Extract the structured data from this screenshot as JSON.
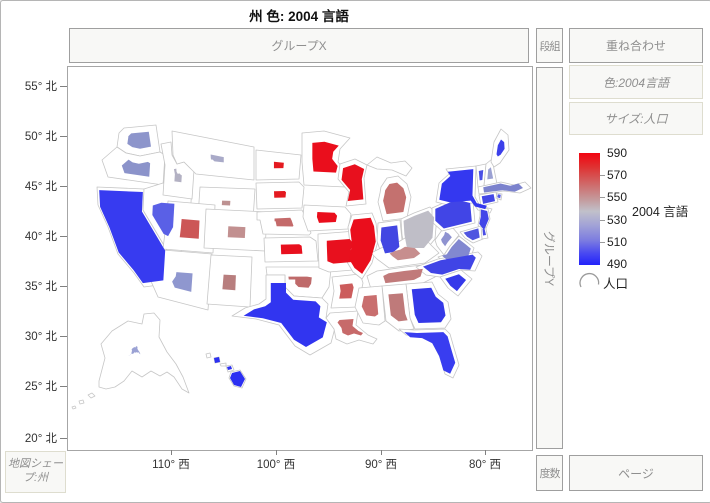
{
  "title": "州 色: 2004 言語",
  "drop_zones": {
    "group_x": "グループX",
    "wrap": "段組",
    "overlay": "重ね合わせ",
    "group_y": "グループY",
    "freq": "度数",
    "page": "ページ",
    "map_shape": "地図シェープ:州",
    "color": "色:2004言語",
    "size": "サイズ:人口"
  },
  "axes": {
    "y_ticks": [
      "55° 北",
      "50° 北",
      "45° 北",
      "40° 北",
      "35° 北",
      "30° 北",
      "25° 北",
      "20° 北"
    ],
    "x_ticks": [
      "110° 西",
      "100° 西",
      "90° 西",
      "80° 西"
    ]
  },
  "legend": {
    "color_title": "2004 言語",
    "color_ticks": [
      "590",
      "570",
      "550",
      "530",
      "510",
      "490"
    ],
    "size_label": "人口",
    "high_color": "#f20511",
    "mid_color": "#c1c0ca",
    "low_color": "#2222fa"
  },
  "chart_data": {
    "type": "choropleth_map",
    "region": "US states",
    "color_variable": "2004 言語",
    "size_variable": "人口",
    "color_scale": {
      "min": 490,
      "max": 590,
      "ticks": [
        590,
        570,
        550,
        530,
        510,
        490
      ],
      "low_color": "#2222fa",
      "mid_color": "#c1c0ca",
      "high_color": "#f20511"
    },
    "state_fill": "#ffffff",
    "state_stroke": "#c6c6c6",
    "states": [
      {
        "id": "WA",
        "color": "#8d95cb",
        "size": 0.55
      },
      {
        "id": "OR",
        "color": "#8b93ca",
        "size": 0.45
      },
      {
        "id": "CA",
        "color": "#373bf0",
        "size": 0.93
      },
      {
        "id": "NV",
        "color": "#5a60e6",
        "size": 0.45
      },
      {
        "id": "ID",
        "color": "#b3b1c3",
        "size": 0.24
      },
      {
        "id": "MT",
        "color": "#a9aac8",
        "size": 0.16
      },
      {
        "id": "WY",
        "color": "#bd9191",
        "size": 0.15
      },
      {
        "id": "UT",
        "color": "#cc5656",
        "size": 0.38
      },
      {
        "id": "CO",
        "color": "#c29090",
        "size": 0.28
      },
      {
        "id": "AZ",
        "color": "#8f97cf",
        "size": 0.33
      },
      {
        "id": "NM",
        "color": "#b87e7e",
        "size": 0.3
      },
      {
        "id": "ND",
        "color": "#e41a20",
        "size": 0.22
      },
      {
        "id": "SD",
        "color": "#e41a20",
        "size": 0.25
      },
      {
        "id": "NE",
        "color": "#c46a6a",
        "size": 0.35
      },
      {
        "id": "KS",
        "color": "#e8101e",
        "size": 0.4
      },
      {
        "id": "OK",
        "color": "#bf6a6a",
        "size": 0.36
      },
      {
        "id": "TX",
        "color": "#3135f0",
        "size": 0.8
      },
      {
        "id": "MN",
        "color": "#ea0e1c",
        "size": 0.55
      },
      {
        "id": "IA",
        "color": "#ea0e1c",
        "size": 0.42
      },
      {
        "id": "MO",
        "color": "#e8101e",
        "size": 0.6
      },
      {
        "id": "AR",
        "color": "#cc5c5c",
        "size": 0.45
      },
      {
        "id": "LA",
        "color": "#c76a6a",
        "size": 0.5
      },
      {
        "id": "WI",
        "color": "#e8101e",
        "size": 0.78
      },
      {
        "id": "MI",
        "color": "#c4716f",
        "size": 0.7
      },
      {
        "id": "IL",
        "color": "#ea0e1c",
        "size": 0.85
      },
      {
        "id": "IN",
        "color": "#4246e2",
        "size": 0.72
      },
      {
        "id": "OH",
        "color": "#bfbec7",
        "size": 0.85
      },
      {
        "id": "KY",
        "color": "#c78e8e",
        "size": 0.45
      },
      {
        "id": "TN",
        "color": "#c17a7a",
        "size": 0.55
      },
      {
        "id": "WV",
        "color": "#8f93d0",
        "size": 0.45
      },
      {
        "id": "VA",
        "color": "#8288d0",
        "size": 0.8
      },
      {
        "id": "NC",
        "color": "#4044e6",
        "size": 0.8
      },
      {
        "id": "SC",
        "color": "#3539ea",
        "size": 0.65
      },
      {
        "id": "GA",
        "color": "#3539e8",
        "size": 0.75
      },
      {
        "id": "AL",
        "color": "#bf7a7a",
        "size": 0.6
      },
      {
        "id": "MS",
        "color": "#c96e6e",
        "size": 0.55
      },
      {
        "id": "FL",
        "color": "#393df0",
        "size": 0.85
      },
      {
        "id": "PA",
        "color": "#4145e6",
        "size": 0.85
      },
      {
        "id": "NY",
        "color": "#3438f0",
        "size": 0.85
      },
      {
        "id": "NJ",
        "color": "#4246e8",
        "size": 0.8
      },
      {
        "id": "MD",
        "color": "#5055e0",
        "size": 0.7
      },
      {
        "id": "DE",
        "color": "#4a4ee5",
        "size": 0.5
      },
      {
        "id": "VT",
        "color": "#4a4fe5",
        "size": 0.45
      },
      {
        "id": "NH",
        "color": "#9aa0d2",
        "size": 0.45
      },
      {
        "id": "ME",
        "color": "#3c40ea",
        "size": 0.45
      },
      {
        "id": "MA",
        "color": "#7b82cd",
        "size": 0.75
      },
      {
        "id": "CT",
        "color": "#4347e6",
        "size": 0.7
      },
      {
        "id": "RI",
        "color": "#555be5",
        "size": 0.6
      },
      {
        "id": "AK",
        "color": "#9ba2d4",
        "size": 0.1
      },
      {
        "id": "HI",
        "color": "#2c30f2",
        "size": 1.0
      }
    ]
  }
}
